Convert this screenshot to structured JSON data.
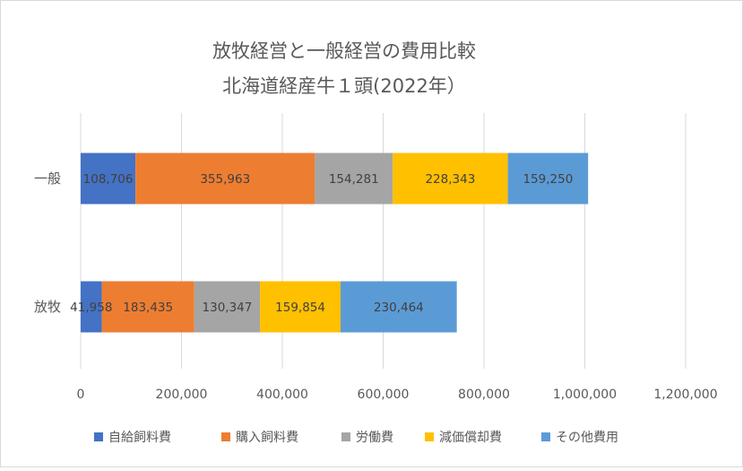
{
  "chart_data": {
    "type": "bar",
    "orientation": "horizontal",
    "stacked": true,
    "title": [
      "放牧経営と一般経営の費用比較",
      "北海道経産牛１頭(2022年）"
    ],
    "categories": [
      "一般",
      "放牧"
    ],
    "series": [
      {
        "name": "自給飼料費",
        "color": "#4472C4",
        "values": [
          108706,
          41958
        ]
      },
      {
        "name": "購入飼料費",
        "color": "#ED7D31",
        "values": [
          355963,
          183435
        ]
      },
      {
        "name": "労働費",
        "color": "#A5A5A5",
        "values": [
          154281,
          130347
        ]
      },
      {
        "name": "減価償却費",
        "color": "#FFC000",
        "values": [
          228343,
          159854
        ]
      },
      {
        "name": "その他費用",
        "color": "#5B9BD5",
        "values": [
          159250,
          230464
        ]
      }
    ],
    "data_labels": [
      [
        "108,706",
        "355,963",
        "154,281",
        "228,343",
        "159,250"
      ],
      [
        "41,958",
        "183,435",
        "130,347",
        "159,854",
        "230,464"
      ]
    ],
    "x_ticks": [
      "0",
      "200,000",
      "400,000",
      "600,000",
      "800,000",
      "1,000,000",
      "1,200,000"
    ],
    "xlim": [
      0,
      1200000
    ],
    "grid": "vertical",
    "legend_position": "bottom"
  }
}
